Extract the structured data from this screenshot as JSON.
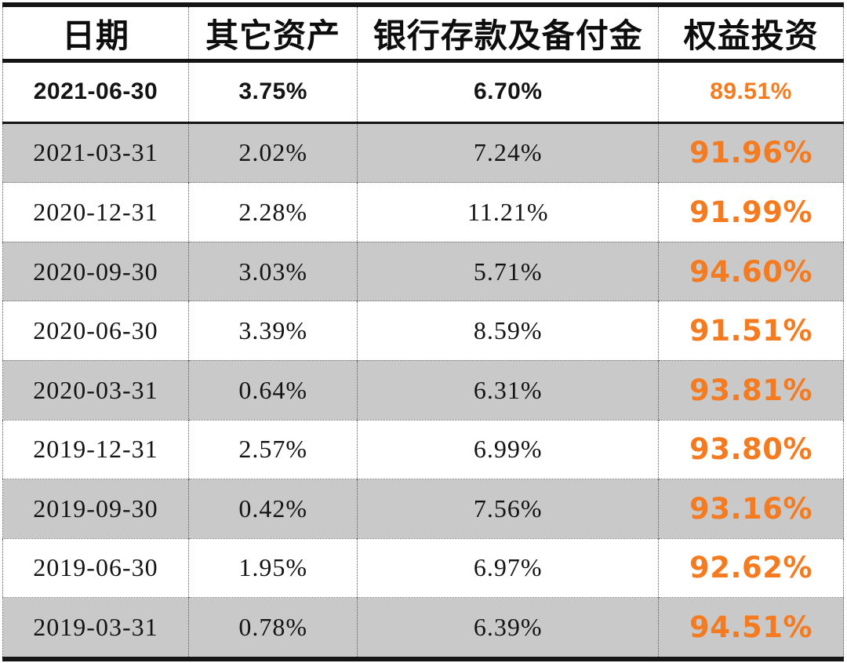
{
  "colors": {
    "accent_orange": "#f57b20",
    "row_stripe_gray": "#c9c9c9",
    "border_black": "#141414",
    "text_black": "#141414"
  },
  "chart_data": {
    "type": "table",
    "title": "",
    "columns": {
      "date": "日期",
      "other_assets": "其它资产",
      "bank_deposits": "银行存款及备付金",
      "equity": "权益投资"
    },
    "rows": [
      {
        "date": "2021-06-30",
        "other_assets": "3.75%",
        "bank_deposits": "6.70%",
        "equity": "89.51%"
      },
      {
        "date": "2021-03-31",
        "other_assets": "2.02%",
        "bank_deposits": "7.24%",
        "equity": "91.96%"
      },
      {
        "date": "2020-12-31",
        "other_assets": "2.28%",
        "bank_deposits": "11.21%",
        "equity": "91.99%"
      },
      {
        "date": "2020-09-30",
        "other_assets": "3.03%",
        "bank_deposits": "5.71%",
        "equity": "94.60%"
      },
      {
        "date": "2020-06-30",
        "other_assets": "3.39%",
        "bank_deposits": "8.59%",
        "equity": "91.51%"
      },
      {
        "date": "2020-03-31",
        "other_assets": "0.64%",
        "bank_deposits": "6.31%",
        "equity": "93.81%"
      },
      {
        "date": "2019-12-31",
        "other_assets": "2.57%",
        "bank_deposits": "6.99%",
        "equity": "93.80%"
      },
      {
        "date": "2019-09-30",
        "other_assets": "0.42%",
        "bank_deposits": "7.56%",
        "equity": "93.16%"
      },
      {
        "date": "2019-06-30",
        "other_assets": "1.95%",
        "bank_deposits": "6.97%",
        "equity": "92.62%"
      },
      {
        "date": "2019-03-31",
        "other_assets": "0.78%",
        "bank_deposits": "6.39%",
        "equity": "94.51%"
      }
    ]
  }
}
